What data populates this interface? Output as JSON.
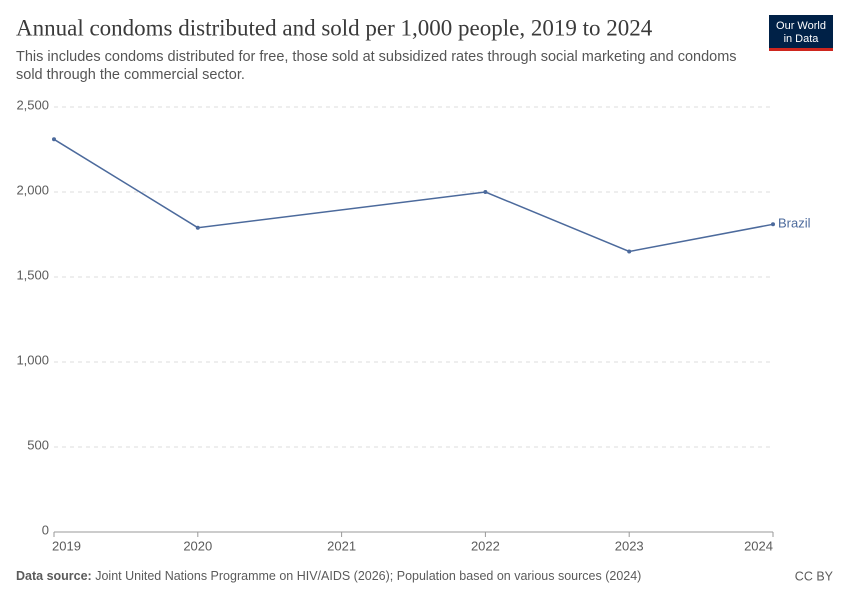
{
  "chart_data": {
    "type": "line",
    "title": "Annual condoms distributed and sold per 1,000 people, 2019 to 2024",
    "subtitle": "This includes condoms distributed for free, those sold at subsidized rates through social marketing and condoms sold through the commercial sector.",
    "logo": [
      "Our World",
      "in Data"
    ],
    "x": [
      2019,
      2020,
      2022,
      2023,
      2024
    ],
    "series": [
      {
        "name": "Brazil",
        "color": "#4c6a9c",
        "values": [
          2310,
          1790,
          2000,
          1650,
          1810
        ]
      }
    ],
    "xlim": [
      2019,
      2024
    ],
    "xticks": [
      2019,
      2020,
      2021,
      2022,
      2023,
      2024
    ],
    "ylim": [
      0,
      2500
    ],
    "yticks": [
      0,
      500,
      {
        "value": 1000,
        "label": "1,000"
      },
      {
        "value": 1500,
        "label": "1,500"
      },
      {
        "value": 2000,
        "label": "2,000"
      },
      {
        "value": 2500,
        "label": "2,500"
      }
    ],
    "grid": true,
    "source_label": "Data source:",
    "source": "Joint United Nations Programme on HIV/AIDS (2026); Population based on various sources (2024)",
    "license": "CC BY"
  }
}
